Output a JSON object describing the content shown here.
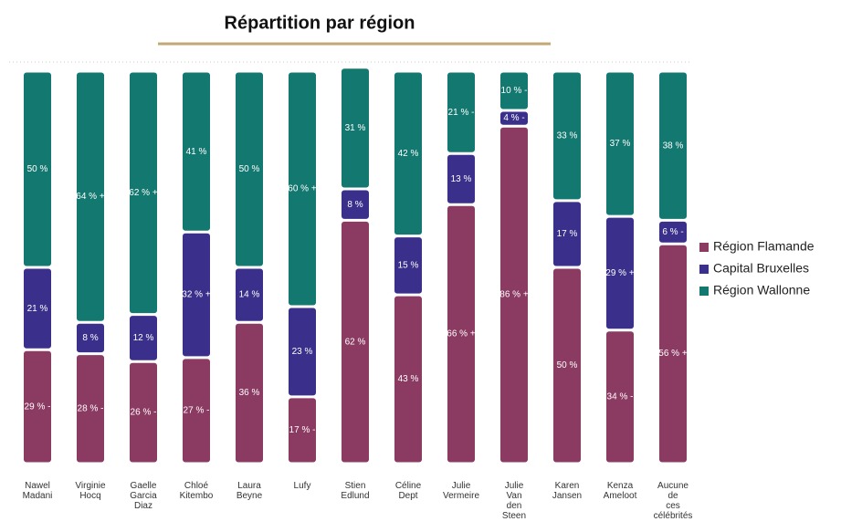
{
  "chart_data": {
    "type": "stacked_bar",
    "title": "Répartition par région",
    "categories": [
      "Nawel Madani",
      "Virginie Hocq",
      "Gaelle Garcia Diaz",
      "Chloé Kitembo",
      "Laura Beyne",
      "Lufy",
      "Stien Edlund",
      "Céline Dept",
      "Julie Vermeire",
      "Julie Van den Steen",
      "Karen Jansen",
      "Kenza Ameloot",
      "Aucune de ces célébrités"
    ],
    "series": [
      {
        "name": "Région Flamande",
        "color": "#8b3a62",
        "values": [
          29,
          28,
          26,
          27,
          36,
          17,
          62,
          43,
          66,
          86,
          50,
          34,
          56
        ],
        "value_labels": [
          "29 % -",
          "28 % -",
          "26 % -",
          "27 % -",
          "36 %",
          "17 % -",
          "62 %",
          "43 %",
          "66 % +",
          "86 % +",
          "50 %",
          "34 % -",
          "56 % +"
        ]
      },
      {
        "name": "Capital Bruxelles",
        "color": "#3a2f8a",
        "values": [
          21,
          8,
          12,
          32,
          14,
          23,
          8,
          15,
          13,
          4,
          17,
          29,
          6
        ],
        "value_labels": [
          "21 %",
          "8 %",
          "12 %",
          "32 % +",
          "14 %",
          "23 %",
          "8 %",
          "15 %",
          "13 %",
          "4 % -",
          "17 %",
          "29 % +",
          "6 % -"
        ]
      },
      {
        "name": "Région Wallonne",
        "color": "#13786f",
        "values": [
          50,
          64,
          62,
          41,
          50,
          60,
          31,
          42,
          21,
          10,
          33,
          37,
          38
        ],
        "value_labels": [
          "50 %",
          "64 % +",
          "62 % +",
          "41 %",
          "50 %",
          "60 % +",
          "31 %",
          "42 %",
          "21 % -",
          "10 % -",
          "33 %",
          "37 %",
          "38 %"
        ]
      }
    ]
  }
}
